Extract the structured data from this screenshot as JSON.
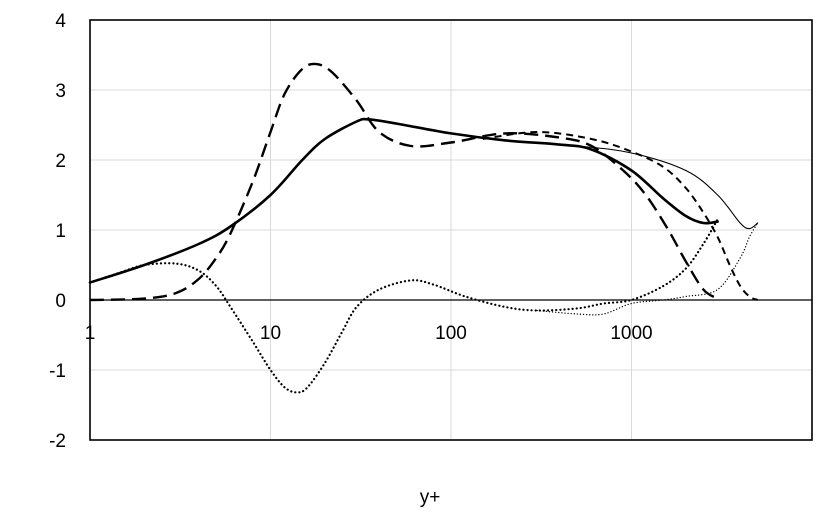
{
  "chart_data": {
    "type": "line",
    "title": "",
    "xlabel": "y+",
    "ylabel": "",
    "xscale": "log",
    "xlim": [
      1,
      10000
    ],
    "ylim": [
      -2,
      4
    ],
    "x_ticks": [
      "1",
      "10",
      "100",
      "1000"
    ],
    "y_ticks": [
      "-2",
      "-1",
      "0",
      "1",
      "2",
      "3",
      "4"
    ],
    "grid": "vertical gridlines at decades, horizontal gridlines at integers",
    "legend": "none",
    "series": [
      {
        "style": "solid-thick",
        "points": [
          [
            1,
            0.25
          ],
          [
            2,
            0.5
          ],
          [
            4,
            0.8
          ],
          [
            6,
            1.05
          ],
          [
            10,
            1.5
          ],
          [
            15,
            2.0
          ],
          [
            20,
            2.3
          ],
          [
            30,
            2.55
          ],
          [
            35,
            2.58
          ],
          [
            50,
            2.52
          ],
          [
            100,
            2.38
          ],
          [
            200,
            2.28
          ],
          [
            400,
            2.22
          ],
          [
            600,
            2.15
          ],
          [
            1000,
            1.85
          ],
          [
            1500,
            1.45
          ],
          [
            2000,
            1.2
          ],
          [
            2500,
            1.1
          ],
          [
            3000,
            1.12
          ]
        ]
      },
      {
        "style": "solid-thin",
        "points": [
          [
            35,
            2.58
          ],
          [
            50,
            2.52
          ],
          [
            100,
            2.38
          ],
          [
            200,
            2.28
          ],
          [
            500,
            2.2
          ],
          [
            1000,
            2.1
          ],
          [
            2000,
            1.85
          ],
          [
            3000,
            1.5
          ],
          [
            4000,
            1.1
          ],
          [
            4500,
            1.02
          ],
          [
            5000,
            1.1
          ]
        ]
      },
      {
        "style": "long-dash",
        "points": [
          [
            1,
            0.0
          ],
          [
            2,
            0.02
          ],
          [
            3,
            0.1
          ],
          [
            4,
            0.3
          ],
          [
            5,
            0.6
          ],
          [
            6,
            0.95
          ],
          [
            8,
            1.7
          ],
          [
            10,
            2.4
          ],
          [
            12,
            2.95
          ],
          [
            15,
            3.3
          ],
          [
            18,
            3.37
          ],
          [
            22,
            3.25
          ],
          [
            30,
            2.85
          ],
          [
            40,
            2.4
          ],
          [
            60,
            2.2
          ],
          [
            100,
            2.25
          ],
          [
            200,
            2.38
          ],
          [
            400,
            2.32
          ],
          [
            600,
            2.2
          ],
          [
            900,
            1.85
          ],
          [
            1200,
            1.5
          ],
          [
            1600,
            1.0
          ],
          [
            2000,
            0.55
          ],
          [
            2500,
            0.15
          ],
          [
            3000,
            0.02
          ]
        ]
      },
      {
        "style": "short-dash",
        "points": [
          [
            150,
            2.3
          ],
          [
            300,
            2.4
          ],
          [
            600,
            2.3
          ],
          [
            1000,
            2.12
          ],
          [
            1500,
            1.9
          ],
          [
            2000,
            1.6
          ],
          [
            2500,
            1.25
          ],
          [
            3000,
            0.9
          ],
          [
            3500,
            0.5
          ],
          [
            4000,
            0.2
          ],
          [
            4500,
            0.05
          ],
          [
            5000,
            0.0
          ]
        ]
      },
      {
        "style": "dotted",
        "points": [
          [
            1,
            0.25
          ],
          [
            1.5,
            0.4
          ],
          [
            2,
            0.5
          ],
          [
            3,
            0.52
          ],
          [
            4,
            0.42
          ],
          [
            5,
            0.2
          ],
          [
            6,
            -0.1
          ],
          [
            8,
            -0.6
          ],
          [
            10,
            -1.0
          ],
          [
            12,
            -1.25
          ],
          [
            14,
            -1.32
          ],
          [
            16,
            -1.25
          ],
          [
            20,
            -0.9
          ],
          [
            25,
            -0.45
          ],
          [
            30,
            -0.1
          ],
          [
            40,
            0.15
          ],
          [
            60,
            0.28
          ],
          [
            80,
            0.22
          ],
          [
            120,
            0.05
          ],
          [
            200,
            -0.1
          ],
          [
            300,
            -0.15
          ],
          [
            500,
            -0.12
          ],
          [
            700,
            -0.05
          ],
          [
            1000,
            0.0
          ],
          [
            1500,
            0.2
          ],
          [
            2000,
            0.45
          ],
          [
            2500,
            0.8
          ],
          [
            3000,
            1.15
          ]
        ]
      },
      {
        "style": "dotted-fine",
        "points": [
          [
            300,
            -0.15
          ],
          [
            500,
            -0.2
          ],
          [
            700,
            -0.2
          ],
          [
            1000,
            -0.05
          ],
          [
            1500,
            0.0
          ],
          [
            2000,
            0.05
          ],
          [
            3000,
            0.15
          ],
          [
            4000,
            0.6
          ],
          [
            4500,
            0.9
          ],
          [
            5000,
            1.1
          ]
        ]
      }
    ]
  }
}
